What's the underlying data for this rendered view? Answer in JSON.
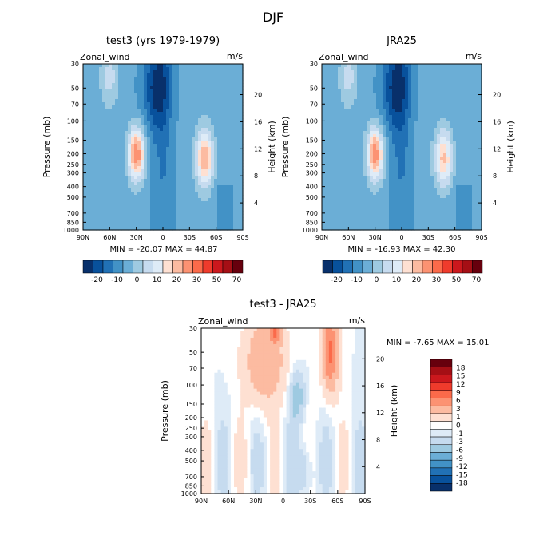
{
  "page_title": "DJF",
  "colors": {
    "neg": [
      "#08306b",
      "#08519c",
      "#2171b5",
      "#4292c6",
      "#6baed6",
      "#9ecae1",
      "#c6dbef",
      "#deebf7"
    ],
    "pos": [
      "#fee0d2",
      "#fcbba1",
      "#fc9272",
      "#fb6a4a",
      "#ef3b2c",
      "#cb181d",
      "#a50f15",
      "#67000d"
    ]
  },
  "chart_data": [
    {
      "type": "heatmap",
      "title": "test3 (yrs 1979-1979)",
      "variable_label": "Zonal_wind",
      "units_label": "m/s",
      "ylabel": "Pressure (mb)",
      "ylabel_right": "Height (km)",
      "x_ticks": [
        "90N",
        "60N",
        "30N",
        "0",
        "30S",
        "60S",
        "90S"
      ],
      "y_ticks": [
        "30",
        "50",
        "70",
        "100",
        "150",
        "200",
        "250",
        "300",
        "400",
        "500",
        "700",
        "850",
        "1000"
      ],
      "y_right_ticks": [
        "20",
        "16",
        "12",
        "8",
        "4"
      ],
      "stats_text": "MIN = -20.07   MAX = 44.87",
      "colorbar_ticks": [
        "-20",
        "-10",
        "0",
        "10",
        "20",
        "30",
        "50",
        "70"
      ],
      "min": -20.07,
      "max": 44.87
    },
    {
      "type": "heatmap",
      "title": "JRA25",
      "variable_label": "Zonal_wind",
      "units_label": "m/s",
      "ylabel": "Pressure (mb)",
      "ylabel_right": "Height (km)",
      "x_ticks": [
        "90N",
        "60N",
        "30N",
        "0",
        "30S",
        "60S",
        "90S"
      ],
      "y_ticks": [
        "30",
        "50",
        "70",
        "100",
        "150",
        "200",
        "250",
        "300",
        "400",
        "500",
        "700",
        "850",
        "1000"
      ],
      "y_right_ticks": [
        "20",
        "16",
        "12",
        "8",
        "4"
      ],
      "stats_text": "MIN = -16.93   MAX = 42.30",
      "colorbar_ticks": [
        "-20",
        "-10",
        "0",
        "10",
        "20",
        "30",
        "50",
        "70"
      ],
      "min": -16.93,
      "max": 42.3
    },
    {
      "type": "heatmap",
      "title": "test3 - JRA25",
      "variable_label": "Zonal_wind",
      "units_label": "m/s",
      "ylabel": "Pressure (mb)",
      "ylabel_right": "Height (km)",
      "x_ticks": [
        "90N",
        "60N",
        "30N",
        "0",
        "30S",
        "60S",
        "90S"
      ],
      "y_ticks": [
        "30",
        "50",
        "70",
        "100",
        "150",
        "200",
        "250",
        "300",
        "400",
        "500",
        "700",
        "850",
        "1000"
      ],
      "y_right_ticks": [
        "20",
        "16",
        "12",
        "8",
        "4"
      ],
      "stats_text": "MIN =   -7.65   MAX =  15.01",
      "colorbar_ticks": [
        "18",
        "15",
        "12",
        "9",
        "6",
        "3",
        "1",
        "0",
        "-1",
        "-3",
        "-6",
        "-9",
        "-12",
        "-15",
        "-18"
      ],
      "min": -7.65,
      "max": 15.01
    }
  ]
}
